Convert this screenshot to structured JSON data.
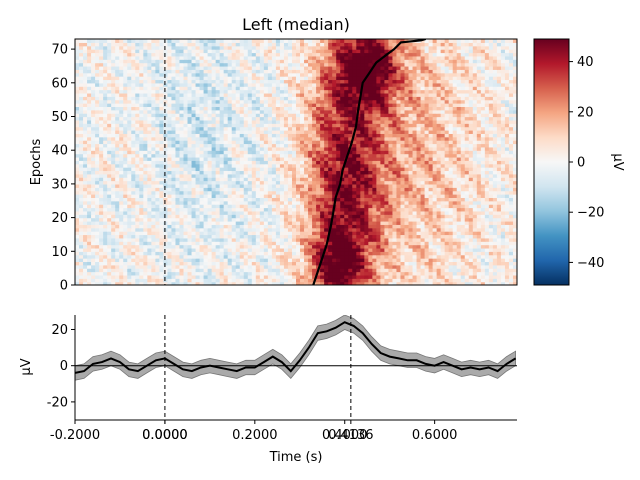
{
  "chart_data": [
    {
      "type": "heatmap",
      "title": "Left (median)",
      "ylabel": "Epochs",
      "xlim": [
        -0.2,
        0.7832
      ],
      "ylim": [
        0,
        73
      ],
      "yticks": [
        0,
        10,
        20,
        30,
        40,
        50,
        60,
        70
      ],
      "stimulus_onset_line": 0.0,
      "colorbar": {
        "label": "µV",
        "range": [
          -49,
          49
        ],
        "ticks": [
          40,
          20,
          0,
          -20,
          -40
        ],
        "tick_labels": [
          "40",
          "20",
          "0",
          "−20",
          "−40"
        ],
        "colormap": "RdBu_r"
      },
      "overlay_line": {
        "color": "#000000",
        "description": "sorted response latency per epoch",
        "points": [
          [
            0.33,
            0
          ],
          [
            0.34,
            4
          ],
          [
            0.35,
            8
          ],
          [
            0.36,
            12
          ],
          [
            0.37,
            18
          ],
          [
            0.375,
            22
          ],
          [
            0.38,
            26
          ],
          [
            0.39,
            30
          ],
          [
            0.395,
            34
          ],
          [
            0.405,
            38
          ],
          [
            0.415,
            42
          ],
          [
            0.425,
            47
          ],
          [
            0.43,
            52
          ],
          [
            0.435,
            56
          ],
          [
            0.44,
            60
          ],
          [
            0.455,
            63
          ],
          [
            0.47,
            66
          ],
          [
            0.49,
            68
          ],
          [
            0.51,
            70
          ],
          [
            0.525,
            72
          ],
          [
            0.57,
            72.6
          ],
          [
            0.58,
            73
          ]
        ]
      },
      "activity_bands": [
        {
          "x": 0.4,
          "sx": 0.06,
          "y": 30,
          "sy": 28,
          "amp": 38
        },
        {
          "x": 0.45,
          "sx": 0.05,
          "y": 65,
          "sy": 8,
          "amp": 42
        },
        {
          "x": 0.38,
          "sx": 0.04,
          "y": 5,
          "sy": 8,
          "amp": 30
        },
        {
          "x": 0.54,
          "sx": 0.12,
          "y": 40,
          "sy": 30,
          "amp": 16
        },
        {
          "x": 0.08,
          "sx": 0.08,
          "y": 45,
          "sy": 25,
          "amp": -8
        }
      ]
    },
    {
      "type": "line",
      "xlabel": "Time (s)",
      "ylabel": "µV",
      "xlim": [
        -0.2,
        0.7832
      ],
      "ylim": [
        -30,
        28
      ],
      "yticks": [
        20,
        0,
        -20
      ],
      "xticks": [
        -0.2,
        0.0,
        0.2,
        0.4,
        0.6
      ],
      "xtick_labels": [
        "-0.2000",
        "0.0000",
        "0.2000",
        "0.4000",
        "0.6000"
      ],
      "markers": [
        {
          "x": 0.0,
          "label": "0.0000"
        },
        {
          "x": 0.4136,
          "label": "0.4136"
        }
      ],
      "series": [
        {
          "color": "#000000",
          "band_color": "#aaaaaa",
          "x": [
            -0.2,
            -0.18,
            -0.16,
            -0.14,
            -0.12,
            -0.1,
            -0.08,
            -0.06,
            -0.04,
            -0.02,
            0.0,
            0.02,
            0.04,
            0.06,
            0.08,
            0.1,
            0.12,
            0.14,
            0.16,
            0.18,
            0.2,
            0.22,
            0.24,
            0.26,
            0.28,
            0.3,
            0.32,
            0.34,
            0.36,
            0.38,
            0.4,
            0.42,
            0.44,
            0.46,
            0.48,
            0.5,
            0.52,
            0.54,
            0.56,
            0.58,
            0.6,
            0.62,
            0.64,
            0.66,
            0.68,
            0.7,
            0.72,
            0.74,
            0.76,
            0.78
          ],
          "y": [
            -4,
            -3,
            1,
            2,
            4,
            2,
            -2,
            -3,
            0,
            3,
            4,
            1,
            -2,
            -3,
            -1,
            0,
            -1,
            -2,
            -3,
            -1,
            -1,
            2,
            5,
            2,
            -3,
            3,
            10,
            18,
            19,
            21,
            24,
            22,
            18,
            12,
            7,
            5,
            4,
            3,
            3,
            1,
            0,
            2,
            0,
            -2,
            -1,
            -2,
            -1,
            -3,
            1,
            4
          ],
          "band": 4
        }
      ]
    }
  ]
}
